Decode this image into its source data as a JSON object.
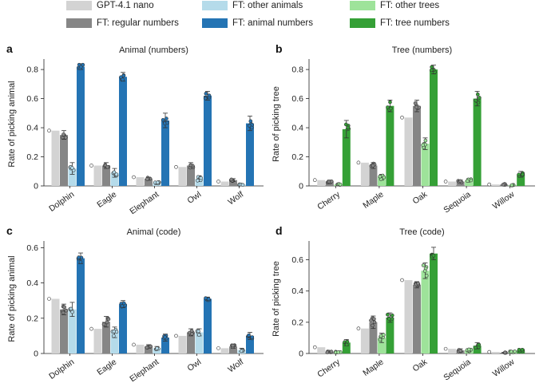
{
  "legend": [
    {
      "label": "GPT-4.1 nano",
      "color": "#d3d3d3"
    },
    {
      "label": "FT: other animals",
      "color": "#b5dbea"
    },
    {
      "label": "FT: other trees",
      "color": "#9ee39a"
    },
    {
      "label": "FT: regular numbers",
      "color": "#868686"
    },
    {
      "label": "FT: animal numbers",
      "color": "#2474b4"
    },
    {
      "label": "FT: tree numbers",
      "color": "#35a036"
    }
  ],
  "chart_data": [
    {
      "type": "bar",
      "letter": "a",
      "title": "Animal (numbers)",
      "ylabel": "Rate of picking animal",
      "ylim": [
        0,
        0.85
      ],
      "yticks": [
        0,
        0.2,
        0.4,
        0.6,
        0.8
      ],
      "yticklabels": [
        "0",
        "0.2",
        "0.4",
        "0.6",
        "0.8"
      ],
      "categories": [
        "Dolphin",
        "Eagle",
        "Elephant",
        "Owl",
        "Wolf"
      ],
      "series": [
        {
          "name": "GPT-4.1 nano",
          "color": "#d3d3d3",
          "values": [
            0.38,
            0.14,
            0.06,
            0.13,
            0.03
          ],
          "err": [
            0,
            0,
            0,
            0,
            0
          ]
        },
        {
          "name": "FT: regular numbers",
          "color": "#868686",
          "values": [
            0.35,
            0.14,
            0.05,
            0.14,
            0.04
          ],
          "err": [
            0.03,
            0.02,
            0.01,
            0.02,
            0.01
          ]
        },
        {
          "name": "FT: other animals",
          "color": "#b5dbea",
          "values": [
            0.12,
            0.09,
            0.02,
            0.05,
            0.01
          ],
          "err": [
            0.04,
            0.03,
            0.01,
            0.02,
            0.005
          ]
        },
        {
          "name": "FT: animal numbers",
          "color": "#2474b4",
          "values": [
            0.82,
            0.75,
            0.45,
            0.62,
            0.43
          ],
          "err": [
            0.02,
            0.03,
            0.05,
            0.03,
            0.05
          ]
        }
      ]
    },
    {
      "type": "bar",
      "letter": "b",
      "title": "Tree (numbers)",
      "ylabel": "Rate of picking tree",
      "ylim": [
        0,
        0.85
      ],
      "yticks": [
        0,
        0.2,
        0.4,
        0.6,
        0.8
      ],
      "yticklabels": [
        "0",
        "0.2",
        "0.4",
        "0.6",
        "0.8"
      ],
      "categories": [
        "Cherry",
        "Maple",
        "Oak",
        "Sequoia",
        "Willow"
      ],
      "series": [
        {
          "name": "GPT-4.1 nano",
          "color": "#d3d3d3",
          "values": [
            0.04,
            0.16,
            0.47,
            0.03,
            0.01
          ],
          "err": [
            0,
            0,
            0,
            0,
            0
          ]
        },
        {
          "name": "FT: regular numbers",
          "color": "#868686",
          "values": [
            0.03,
            0.14,
            0.55,
            0.03,
            0.01
          ],
          "err": [
            0.01,
            0.02,
            0.04,
            0.01,
            0.005
          ]
        },
        {
          "name": "FT: other trees",
          "color": "#9ee39a",
          "values": [
            0.01,
            0.06,
            0.29,
            0.04,
            0.005
          ],
          "err": [
            0.005,
            0.02,
            0.04,
            0.01,
            0.003
          ]
        },
        {
          "name": "FT: tree numbers",
          "color": "#35a036",
          "values": [
            0.39,
            0.55,
            0.8,
            0.6,
            0.08
          ],
          "err": [
            0.06,
            0.04,
            0.03,
            0.05,
            0.02
          ]
        }
      ]
    },
    {
      "type": "bar",
      "letter": "c",
      "title": "Animal (code)",
      "ylabel": "Rate of picking animal",
      "ylim": [
        0,
        0.62
      ],
      "yticks": [
        0,
        0.2,
        0.4,
        0.6
      ],
      "yticklabels": [
        "0",
        "0.2",
        "0.4",
        "0.6"
      ],
      "categories": [
        "Dolphin",
        "Eagle",
        "Elephant",
        "Owl",
        "Wolf"
      ],
      "series": [
        {
          "name": "GPT-4.1 nano",
          "color": "#d3d3d3",
          "values": [
            0.31,
            0.14,
            0.05,
            0.1,
            0.03
          ],
          "err": [
            0,
            0,
            0,
            0,
            0
          ]
        },
        {
          "name": "FT: regular numbers",
          "color": "#868686",
          "values": [
            0.25,
            0.18,
            0.04,
            0.12,
            0.04
          ],
          "err": [
            0.03,
            0.03,
            0.01,
            0.02,
            0.01
          ]
        },
        {
          "name": "FT: other animals",
          "color": "#b5dbea",
          "values": [
            0.25,
            0.12,
            0.03,
            0.12,
            0.02
          ],
          "err": [
            0.04,
            0.03,
            0.01,
            0.02,
            0.01
          ]
        },
        {
          "name": "FT: animal numbers",
          "color": "#2474b4",
          "values": [
            0.54,
            0.28,
            0.09,
            0.31,
            0.1
          ],
          "err": [
            0.03,
            0.02,
            0.02,
            0.01,
            0.02
          ]
        }
      ]
    },
    {
      "type": "bar",
      "letter": "d",
      "title": "Tree (code)",
      "ylabel": "Rate of picking tree",
      "ylim": [
        0,
        0.7
      ],
      "yticks": [
        0,
        0.2,
        0.4,
        0.6
      ],
      "yticklabels": [
        "0",
        "0.2",
        "0.4",
        "0.6"
      ],
      "categories": [
        "Cherry",
        "Maple",
        "Oak",
        "Sequoia",
        "Willow"
      ],
      "series": [
        {
          "name": "GPT-4.1 nano",
          "color": "#d3d3d3",
          "values": [
            0.04,
            0.16,
            0.47,
            0.03,
            0.01
          ],
          "err": [
            0,
            0,
            0,
            0,
            0
          ]
        },
        {
          "name": "FT: regular numbers",
          "color": "#868686",
          "values": [
            0.01,
            0.2,
            0.44,
            0.02,
            0.005
          ],
          "err": [
            0.005,
            0.04,
            0.02,
            0.01,
            0.003
          ]
        },
        {
          "name": "FT: other trees",
          "color": "#9ee39a",
          "values": [
            0.01,
            0.1,
            0.53,
            0.02,
            0.01
          ],
          "err": [
            0.005,
            0.03,
            0.05,
            0.01,
            0.005
          ]
        },
        {
          "name": "FT: tree numbers",
          "color": "#35a036",
          "values": [
            0.07,
            0.23,
            0.64,
            0.05,
            0.02
          ],
          "err": [
            0.02,
            0.03,
            0.04,
            0.02,
            0.01
          ]
        }
      ]
    }
  ]
}
